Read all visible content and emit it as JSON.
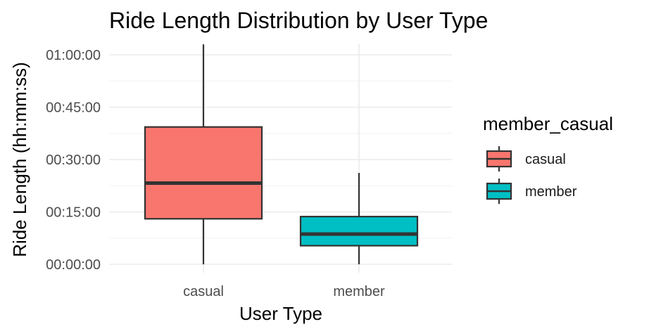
{
  "chart_data": {
    "type": "box",
    "title": "Ride Length Distribution by User Type",
    "xlabel": "User Type",
    "ylabel": "Ride Length (hh:mm:ss)",
    "ylim_seconds": [
      0,
      3600
    ],
    "y_ticks": [
      {
        "seconds": 0,
        "label": "00:00:00"
      },
      {
        "seconds": 900,
        "label": "00:15:00"
      },
      {
        "seconds": 1800,
        "label": "00:30:00"
      },
      {
        "seconds": 2700,
        "label": "00:45:00"
      },
      {
        "seconds": 3600,
        "label": "01:00:00"
      }
    ],
    "grid": true,
    "legend": {
      "title": "member_casual",
      "position": "right",
      "entries": [
        {
          "label": "casual",
          "color": "#F8766D"
        },
        {
          "label": "member",
          "color": "#00BFC4"
        }
      ]
    },
    "categories": [
      "casual",
      "member"
    ],
    "boxes": [
      {
        "category": "casual",
        "color": "#F8766D",
        "min": 0,
        "q1": 782,
        "median": 1395,
        "q3": 2360,
        "max": 3780
      },
      {
        "category": "member",
        "color": "#00BFC4",
        "min": 0,
        "q1": 320,
        "median": 520,
        "q3": 820,
        "max": 1570
      }
    ]
  }
}
